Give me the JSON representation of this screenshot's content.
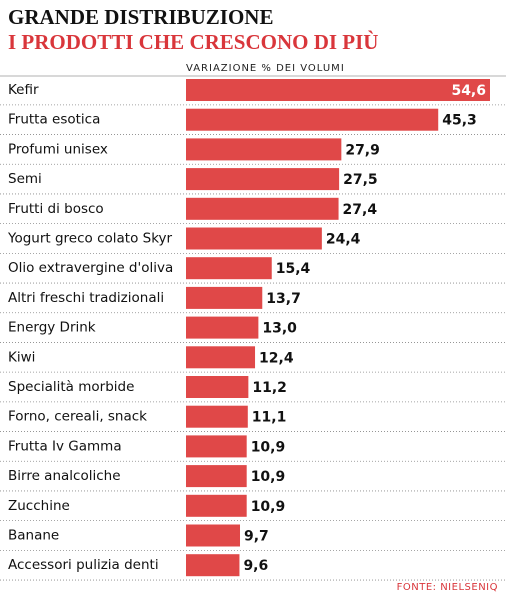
{
  "chart_data": {
    "type": "bar",
    "orientation": "horizontal",
    "title": "GRANDE DISTRIBUZIONE",
    "subtitle": "I PRODOTTI CHE CRESCONO DI PIÙ",
    "axis_label": "VARIAZIONE % DEI VOLUMI",
    "source": "FONTE: NIELSENIQ",
    "color": "#e04848",
    "categories": [
      "Kefir",
      "Frutta esotica",
      "Profumi unisex",
      "Semi",
      "Frutti di bosco",
      "Yogurt greco colato Skyr",
      "Olio extravergine d'oliva",
      "Altri freschi tradizionali",
      "Energy Drink",
      "Kiwi",
      "Specialità morbide",
      "Forno, cereali, snack",
      "Frutta Iv Gamma",
      "Birre analcoliche",
      "Zucchine",
      "Banane",
      "Accessori pulizia denti"
    ],
    "values": [
      54.6,
      45.3,
      27.9,
      27.5,
      27.4,
      24.4,
      15.4,
      13.7,
      13.0,
      12.4,
      11.2,
      11.1,
      10.9,
      10.9,
      10.9,
      9.7,
      9.6
    ],
    "value_labels": [
      "54,6",
      "45,3",
      "27,9",
      "27,5",
      "27,4",
      "24,4",
      "15,4",
      "13,7",
      "13,0",
      "12,4",
      "11,2",
      "11,1",
      "10,9",
      "10,9",
      "10,9",
      "9,7",
      "9,6"
    ]
  }
}
